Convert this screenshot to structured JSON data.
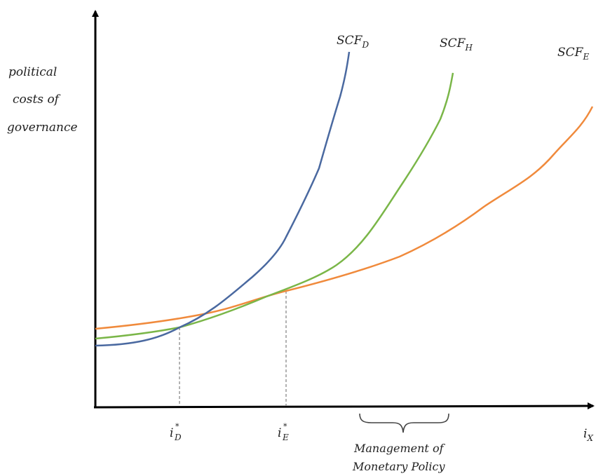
{
  "y_axis_label": [
    "political",
    "costs of",
    "governance"
  ],
  "x_axis_label": {
    "base": "i",
    "sub": "X"
  },
  "curves": [
    {
      "id": "D",
      "label_base": "SCF",
      "label_sub": "D",
      "color": "#4a69a0"
    },
    {
      "id": "H",
      "label_base": "SCF",
      "label_sub": "H",
      "color": "#7ab648"
    },
    {
      "id": "E",
      "label_base": "SCF",
      "label_sub": "E",
      "color": "#f08a3c"
    }
  ],
  "markers": [
    {
      "base": "i",
      "sup": "*",
      "sub": "D"
    },
    {
      "base": "i",
      "sup": "*",
      "sub": "E"
    }
  ],
  "bracket_label": [
    "Management of",
    "Monetary Policy"
  ]
}
